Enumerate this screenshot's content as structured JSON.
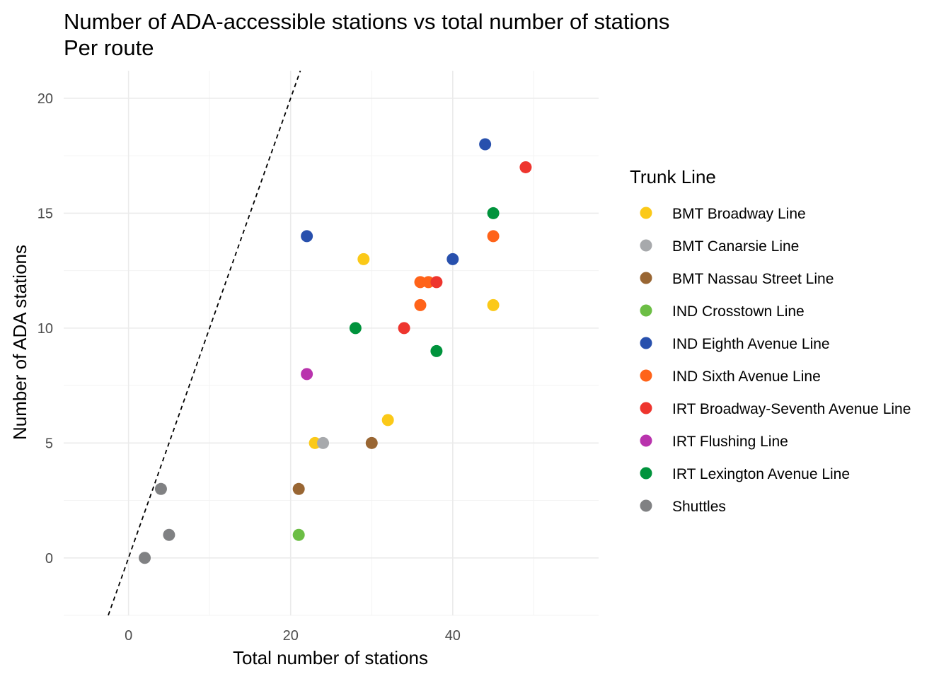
{
  "chart_data": {
    "type": "scatter",
    "title": "Number of ADA-accessible stations vs total number of stations",
    "subtitle": "Per route",
    "xlabel": "Total number of stations",
    "ylabel": "Number of ADA stations",
    "xlim": [
      -8,
      58
    ],
    "ylim": [
      -2.5,
      21.2
    ],
    "x_ticks": [
      0,
      20,
      40
    ],
    "y_ticks": [
      0,
      5,
      10,
      15,
      20
    ],
    "grid": true,
    "reference_line": {
      "slope": 1,
      "intercept": 0,
      "style": "dashed",
      "color": "#000000"
    },
    "legend": {
      "title": "Trunk Line",
      "position": "right"
    },
    "series": [
      {
        "name": "BMT Broadway Line",
        "color": "#FBC918",
        "points": [
          [
            23,
            5
          ],
          [
            29,
            13
          ],
          [
            32,
            6
          ],
          [
            45,
            11
          ]
        ]
      },
      {
        "name": "BMT Canarsie Line",
        "color": "#A7A9AC",
        "points": [
          [
            24,
            5
          ]
        ]
      },
      {
        "name": "BMT Nassau Street Line",
        "color": "#996633",
        "points": [
          [
            21,
            3
          ],
          [
            30,
            5
          ]
        ]
      },
      {
        "name": "IND Crosstown Line",
        "color": "#6CBE45",
        "points": [
          [
            21,
            1
          ]
        ]
      },
      {
        "name": "IND Eighth Avenue Line",
        "color": "#2850AD",
        "points": [
          [
            22,
            14
          ],
          [
            40,
            13
          ],
          [
            44,
            18
          ]
        ]
      },
      {
        "name": "IND Sixth Avenue Line",
        "color": "#FF6319",
        "points": [
          [
            36,
            12
          ],
          [
            37,
            12
          ],
          [
            36,
            11
          ],
          [
            45,
            14
          ]
        ]
      },
      {
        "name": "IRT Broadway-Seventh Avenue Line",
        "color": "#EE352E",
        "points": [
          [
            34,
            10
          ],
          [
            38,
            12
          ],
          [
            49,
            17
          ]
        ]
      },
      {
        "name": "IRT Flushing Line",
        "color": "#B933AD",
        "points": [
          [
            22,
            8
          ]
        ]
      },
      {
        "name": "IRT Lexington Avenue Line",
        "color": "#00933C",
        "points": [
          [
            28,
            10
          ],
          [
            38,
            9
          ],
          [
            45,
            15
          ]
        ]
      },
      {
        "name": "Shuttles",
        "color": "#808183",
        "points": [
          [
            2,
            0
          ],
          [
            4,
            3
          ],
          [
            5,
            1
          ]
        ]
      }
    ]
  }
}
